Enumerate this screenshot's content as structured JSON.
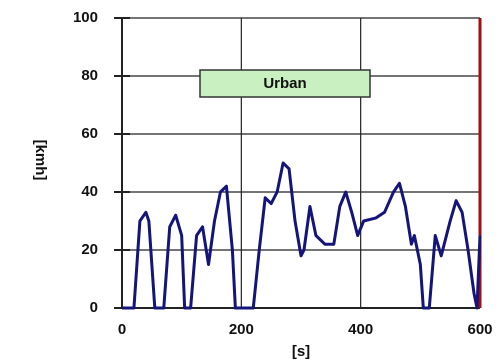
{
  "chart_data": {
    "type": "line",
    "x_label": "[s]",
    "y_label": "[kmh]",
    "annotation": "Urban",
    "x": [
      0,
      20,
      30,
      40,
      45,
      55,
      70,
      80,
      90,
      100,
      105,
      115,
      125,
      135,
      145,
      155,
      165,
      175,
      185,
      190,
      220,
      230,
      240,
      250,
      260,
      270,
      280,
      290,
      300,
      305,
      315,
      325,
      340,
      355,
      365,
      375,
      385,
      395,
      405,
      425,
      440,
      455,
      465,
      475,
      485,
      490,
      500,
      505,
      515,
      525,
      535,
      550,
      560,
      570,
      580,
      590,
      595,
      600
    ],
    "values": [
      0,
      0,
      30,
      33,
      30,
      0,
      0,
      28,
      32,
      25,
      0,
      0,
      25,
      28,
      15,
      30,
      40,
      42,
      20,
      0,
      0,
      20,
      38,
      36,
      40,
      50,
      48,
      30,
      18,
      20,
      35,
      25,
      22,
      22,
      35,
      40,
      33,
      25,
      30,
      31,
      33,
      40,
      43,
      35,
      22,
      25,
      15,
      0,
      0,
      25,
      18,
      30,
      37,
      33,
      20,
      5,
      0,
      25
    ],
    "color": "#14147a",
    "xlim": [
      0,
      600
    ],
    "xticks": [
      0,
      200,
      400,
      600
    ],
    "ylim": [
      0,
      100
    ],
    "yticks": [
      0,
      20,
      40,
      60,
      80,
      100
    ],
    "grid": true
  }
}
